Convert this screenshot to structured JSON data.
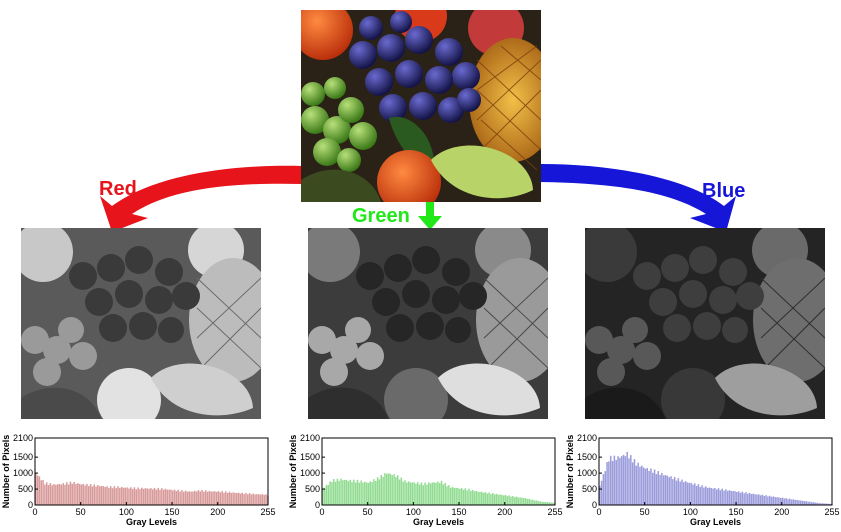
{
  "labels": {
    "red": "Red",
    "green": "Green",
    "blue": "Blue"
  },
  "colors": {
    "red": "#e8141c",
    "green": "#22e81a",
    "blue": "#1616d8",
    "red_fill": "#d89a9a",
    "green_fill": "#92dc92",
    "blue_fill": "#9c9cdc"
  },
  "source_image": {
    "icon": "fruit-photo",
    "description_icon": "color-fruit-photo"
  },
  "channels": [
    {
      "key": "red",
      "icon": "grayscale-red-channel-photo"
    },
    {
      "key": "green",
      "icon": "grayscale-green-channel-photo"
    },
    {
      "key": "blue",
      "icon": "grayscale-blue-channel-photo"
    }
  ],
  "chart_data": [
    {
      "type": "area",
      "channel": "Red",
      "xlabel": "Gray Levels",
      "ylabel": "Number of Pixels",
      "xlim": [
        0,
        255
      ],
      "ylim": [
        0,
        2100
      ],
      "xticks": [
        0,
        50,
        100,
        150,
        200,
        255
      ],
      "yticks": [
        0,
        500,
        1000,
        1500,
        2100
      ],
      "x": [
        0,
        10,
        20,
        30,
        40,
        50,
        60,
        70,
        80,
        90,
        100,
        110,
        120,
        130,
        140,
        150,
        160,
        170,
        180,
        190,
        200,
        210,
        220,
        230,
        240,
        250,
        255
      ],
      "values": [
        1000,
        680,
        640,
        660,
        700,
        650,
        620,
        600,
        560,
        560,
        540,
        520,
        520,
        510,
        500,
        470,
        440,
        420,
        450,
        430,
        420,
        400,
        380,
        360,
        340,
        330,
        300
      ]
    },
    {
      "type": "area",
      "channel": "Green",
      "xlabel": "Gray Levels",
      "ylabel": "Number of Pixels",
      "xlim": [
        0,
        255
      ],
      "ylim": [
        0,
        2100
      ],
      "xticks": [
        0,
        50,
        100,
        150,
        200,
        255
      ],
      "yticks": [
        0,
        500,
        1000,
        1500,
        2100
      ],
      "x": [
        0,
        10,
        20,
        30,
        40,
        50,
        60,
        70,
        80,
        90,
        100,
        110,
        120,
        130,
        140,
        150,
        160,
        170,
        180,
        190,
        200,
        210,
        220,
        230,
        240,
        250,
        255
      ],
      "values": [
        500,
        760,
        800,
        760,
        740,
        700,
        820,
        1000,
        920,
        740,
        700,
        660,
        700,
        720,
        560,
        520,
        480,
        420,
        380,
        340,
        300,
        260,
        220,
        160,
        100,
        80,
        60
      ]
    },
    {
      "type": "area",
      "channel": "Blue",
      "xlabel": "Gray Levels",
      "ylabel": "Number of Pixels",
      "xlim": [
        0,
        255
      ],
      "ylim": [
        0,
        2100
      ],
      "xticks": [
        0,
        50,
        100,
        150,
        200,
        255
      ],
      "yticks": [
        0,
        500,
        1000,
        1500,
        2100
      ],
      "x": [
        0,
        10,
        20,
        30,
        40,
        50,
        60,
        70,
        80,
        90,
        100,
        110,
        120,
        130,
        140,
        150,
        160,
        170,
        180,
        190,
        200,
        210,
        220,
        230,
        240,
        250,
        255
      ],
      "values": [
        600,
        1450,
        1480,
        1600,
        1300,
        1150,
        1050,
        950,
        850,
        760,
        680,
        600,
        540,
        500,
        460,
        420,
        380,
        340,
        300,
        260,
        220,
        180,
        140,
        100,
        60,
        40,
        30
      ]
    }
  ]
}
